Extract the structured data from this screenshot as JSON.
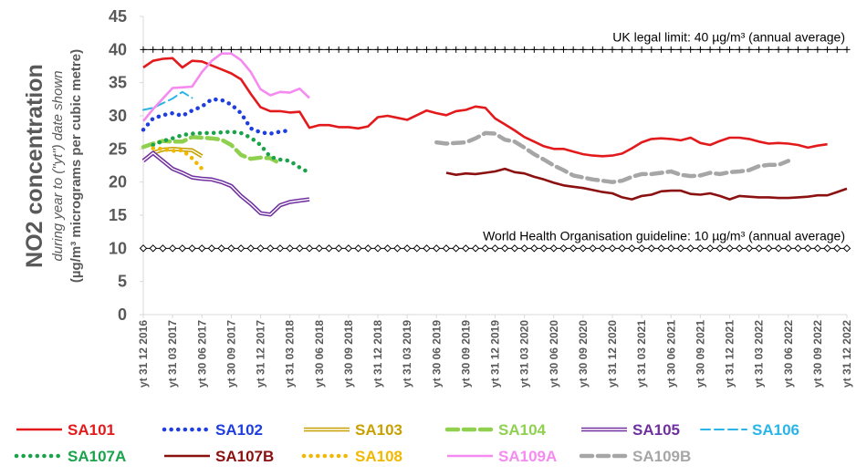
{
  "chart_data": {
    "type": "line",
    "ylabel": "NO2 concentration",
    "ylabel_sub1": "during year to (\"yt\") date shown",
    "ylabel_sub2": "(µg/m³ micrograms per cubic metre)",
    "ylim": [
      0,
      45
    ],
    "yticks": [
      "0",
      "5",
      "10",
      "15",
      "20",
      "25",
      "30",
      "35",
      "40",
      "45"
    ],
    "x_tick_labels": [
      "yt 31 12 2016",
      "yt 31 03 2017",
      "yt 30 06 2017",
      "yt 30 09 2017",
      "yt 31 12 2017",
      "yt 31 03 2018",
      "yt 30 06 2018",
      "yt 30 09 2018",
      "yt 31 12 2018",
      "yt 31 03 2019",
      "yt 30 06 2019",
      "yt 30 09 2019",
      "yt 31 12 2019",
      "yt 31 03 2020",
      "yt 30 06 2020",
      "yt 30 09 2020",
      "yt 31 12 2020",
      "yt 31 03 2021",
      "yt 30 06 2021",
      "yt 30 09 2021",
      "yt 31 12 2021",
      "yt 31 03 2022",
      "yt 30 06 2022",
      "yt 30 09 2022",
      "yt 31 12 2022"
    ],
    "x_months": [
      "2016-12",
      "2017-01",
      "2017-02",
      "2017-03",
      "2017-04",
      "2017-05",
      "2017-06",
      "2017-07",
      "2017-08",
      "2017-09",
      "2017-10",
      "2017-11",
      "2017-12",
      "2018-01",
      "2018-02",
      "2018-03",
      "2018-04",
      "2018-05",
      "2018-06",
      "2018-07",
      "2018-08",
      "2018-09",
      "2018-10",
      "2018-11",
      "2018-12",
      "2019-01",
      "2019-02",
      "2019-03",
      "2019-04",
      "2019-05",
      "2019-06",
      "2019-07",
      "2019-08",
      "2019-09",
      "2019-10",
      "2019-11",
      "2019-12",
      "2020-01",
      "2020-02",
      "2020-03",
      "2020-04",
      "2020-05",
      "2020-06",
      "2020-07",
      "2020-08",
      "2020-09",
      "2020-10",
      "2020-11",
      "2020-12",
      "2021-01",
      "2021-02",
      "2021-03",
      "2021-04",
      "2021-05",
      "2021-06",
      "2021-07",
      "2021-08",
      "2021-09",
      "2021-10",
      "2021-11",
      "2021-12",
      "2022-01",
      "2022-02",
      "2022-03",
      "2022-04",
      "2022-05",
      "2022-06",
      "2022-07",
      "2022-08",
      "2022-09",
      "2022-10",
      "2022-11",
      "2022-12"
    ],
    "reference_lines": [
      {
        "value": 40,
        "label": "UK legal limit:  40 µg/m³ (annual average)"
      },
      {
        "value": 10,
        "label": "World Health Organisation guideline:  10 µg/m³ (annual average)"
      }
    ],
    "grid": false,
    "legend_position": "bottom",
    "series": [
      {
        "name": "SA101",
        "color": "#e31a1c",
        "style": "solid",
        "values": [
          37.3,
          38.3,
          38.6,
          38.7,
          37.3,
          38.3,
          38.2,
          37.6,
          37.0,
          36.4,
          35.5,
          33.3,
          31.3,
          30.7,
          30.7,
          30.5,
          30.6,
          28.2,
          28.6,
          28.6,
          28.3,
          28.3,
          28.1,
          28.4,
          29.8,
          30.0,
          29.7,
          29.4,
          30.1,
          30.8,
          30.4,
          30.1,
          30.7,
          30.9,
          31.4,
          31.2,
          29.6,
          28.7,
          27.8,
          26.8,
          26.1,
          25.4,
          25.0,
          25.0,
          24.6,
          24.2,
          24.0,
          23.9,
          24.0,
          24.3,
          25.1,
          26.0,
          26.5,
          26.6,
          26.5,
          26.3,
          26.7,
          25.9,
          25.6,
          26.2,
          26.7,
          26.7,
          26.5,
          26.1,
          25.8,
          25.9,
          25.8,
          25.6,
          25.2,
          25.5,
          25.7
        ]
      },
      {
        "name": "SA102",
        "color": "#1f3ee0",
        "style": "dots",
        "values": [
          27.9,
          29.6,
          30.1,
          30.4,
          30.0,
          30.8,
          31.4,
          32.5,
          32.4,
          31.7,
          30.4,
          28.1,
          27.5,
          27.3,
          27.6,
          27.8
        ]
      },
      {
        "name": "SA103",
        "color": "#c8a000",
        "style": "double",
        "values": [
          24.4,
          24.9,
          25.0,
          24.9,
          24.8,
          23.9
        ]
      },
      {
        "name": "SA104",
        "color": "#8fd14f",
        "style": "dash",
        "values": [
          25.3,
          25.8,
          26.2,
          26.1,
          26.1,
          26.8,
          26.7,
          26.6,
          26.4,
          25.6,
          24.1,
          23.5,
          23.7,
          23.6,
          22.8
        ]
      },
      {
        "name": "SA105",
        "color": "#7030a0",
        "style": "double",
        "values": [
          23.2,
          24.4,
          23.2,
          22.0,
          21.4,
          20.7,
          20.5,
          20.4,
          20.0,
          19.4,
          17.9,
          16.7,
          15.3,
          15.1,
          16.5,
          17.0,
          17.2,
          17.4
        ]
      },
      {
        "name": "SA106",
        "color": "#29b5e8",
        "style": "longdash",
        "values": [
          30.9,
          31.2,
          31.9,
          32.6,
          33.6,
          32.7
        ]
      },
      {
        "name": "SA107A",
        "color": "#1aa34a",
        "style": "dots",
        "values": [
          25.6,
          26.2,
          26.6,
          27.1,
          27.3,
          27.4,
          27.4,
          27.5,
          27.6,
          27.4,
          26.7,
          25.6,
          23.8,
          23.4,
          23.2,
          22.2,
          21.4
        ]
      },
      {
        "name": "SA107B",
        "color": "#8b1010",
        "style": "solid",
        "values": [
          21.4,
          21.1,
          21.3,
          21.2,
          21.4,
          21.6,
          22.0,
          21.5,
          21.3,
          20.8,
          20.4,
          19.9,
          19.5,
          19.3,
          19.1,
          18.8,
          18.5,
          18.3,
          17.7,
          17.4,
          17.9,
          18.1,
          18.6,
          18.7,
          18.7,
          18.2,
          18.1,
          18.3,
          17.9,
          17.4,
          17.9,
          17.8,
          17.7,
          17.7,
          17.6,
          17.6,
          17.7,
          17.8,
          18.0,
          18.0,
          18.5,
          19.0
        ]
      },
      {
        "name": "SA108",
        "color": "#f2b800",
        "style": "dots",
        "values": [
          25.1,
          25.0,
          24.7,
          24.8,
          23.6,
          22.0
        ]
      },
      {
        "name": "SA109A",
        "color": "#f58af0",
        "style": "solid",
        "values": [
          29.2,
          31.0,
          32.6,
          34.2,
          34.3,
          34.4,
          36.6,
          38.3,
          39.4,
          39.4,
          38.4,
          36.6,
          34.0,
          33.1,
          33.6,
          33.5,
          34.1,
          32.7
        ]
      },
      {
        "name": "SA109B",
        "color": "#a6a6a6",
        "style": "dash",
        "values": [
          26.0,
          25.8,
          25.9,
          26.0,
          26.6,
          27.4,
          27.3,
          26.4,
          26.1,
          25.2,
          24.2,
          23.4,
          22.5,
          21.8,
          21.0,
          20.7,
          20.4,
          20.2,
          20.0,
          20.2,
          20.8,
          21.2,
          21.2,
          21.4,
          21.6,
          21.1,
          20.9,
          21.0,
          21.4,
          21.2,
          21.5,
          21.6,
          21.8,
          22.4,
          22.6,
          22.6,
          23.2
        ]
      }
    ],
    "series_start_index": {
      "SA101": 0,
      "SA102": 0,
      "SA103": 1,
      "SA104": 0,
      "SA105": 0,
      "SA106": 0,
      "SA107A": 1,
      "SA107B": 31,
      "SA108": 1,
      "SA109A": 0,
      "SA109B": 30
    }
  }
}
